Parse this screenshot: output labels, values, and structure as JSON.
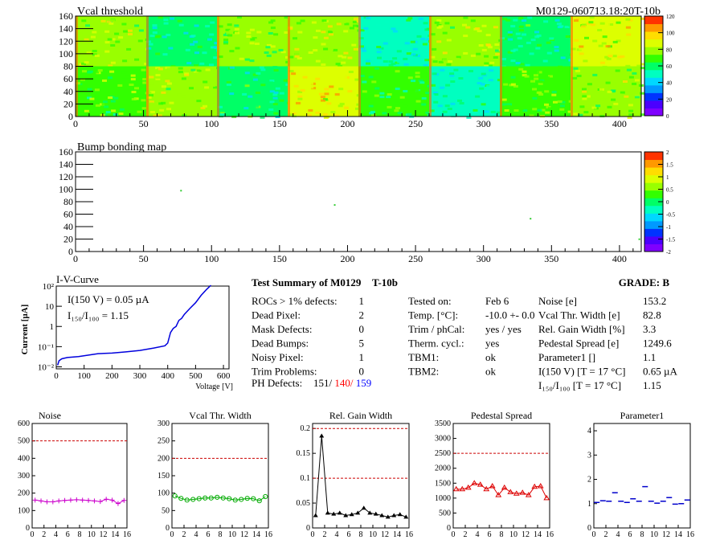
{
  "module_id": "M0129-060713.18:20T-10b",
  "vcal": {
    "title": "Vcal threshold",
    "x_ticks": [
      "0",
      "50",
      "100",
      "150",
      "200",
      "250",
      "300",
      "350",
      "400"
    ],
    "y_ticks": [
      "0",
      "20",
      "40",
      "60",
      "80",
      "100",
      "120",
      "140",
      "160"
    ],
    "palette_ticks": [
      "0",
      "20",
      "40",
      "60",
      "80",
      "100",
      "120"
    ],
    "roc_levels_top": [
      88,
      60,
      82,
      92,
      58,
      90,
      62,
      96
    ],
    "roc_levels_bottom": [
      78,
      90,
      64,
      100,
      72,
      58,
      80,
      86
    ],
    "colors": [
      "#7f00ff",
      "#4b00ff",
      "#0033ff",
      "#0099ff",
      "#00d8ff",
      "#00ffc0",
      "#00ff66",
      "#33ff00",
      "#99ff00",
      "#ddff00",
      "#ffdd00",
      "#ff9900",
      "#ff3300"
    ]
  },
  "bump": {
    "title": "Bump bonding map",
    "x_ticks": [
      "0",
      "50",
      "100",
      "150",
      "200",
      "250",
      "300",
      "350",
      "400"
    ],
    "y_ticks": [
      "0",
      "20",
      "40",
      "60",
      "80",
      "100",
      "120",
      "140",
      "160"
    ],
    "palette_ticks": [
      "2",
      "1.5",
      "1",
      "0.5",
      "0",
      "-0.5",
      "-1",
      "-1.5",
      "-2"
    ],
    "dots": [
      [
        77,
        99
      ],
      [
        190,
        76
      ],
      [
        334,
        54
      ],
      [
        414,
        21
      ]
    ]
  },
  "iv": {
    "title": "I-V-Curve",
    "ylabel": "Current [µA]",
    "xlabel": "Voltage [V]",
    "x_ticks": [
      "0",
      "100",
      "200",
      "300",
      "400",
      "500",
      "600"
    ],
    "y_ticks": [
      "10⁻²",
      "10⁻¹",
      "1",
      "10",
      "10²"
    ],
    "ann1": "I(150 V) = 0.05 µA",
    "ann2": "I₁₅₀/I₁₀₀ =  1.15",
    "points": [
      [
        5,
        0.012
      ],
      [
        10,
        0.02
      ],
      [
        20,
        0.025
      ],
      [
        40,
        0.029
      ],
      [
        80,
        0.032
      ],
      [
        150,
        0.045
      ],
      [
        200,
        0.048
      ],
      [
        250,
        0.055
      ],
      [
        300,
        0.065
      ],
      [
        350,
        0.085
      ],
      [
        390,
        0.11
      ],
      [
        400,
        0.15
      ],
      [
        410,
        0.5
      ],
      [
        420,
        0.8
      ],
      [
        430,
        1.0
      ],
      [
        440,
        2.0
      ],
      [
        450,
        2.5
      ],
      [
        460,
        4.0
      ],
      [
        480,
        8
      ],
      [
        500,
        15
      ],
      [
        520,
        35
      ],
      [
        540,
        70
      ],
      [
        555,
        110
      ]
    ]
  },
  "summary": {
    "title": "Test Summary of M0129",
    "tag": "T-10b",
    "grade": "GRADE:  B",
    "col1": [
      {
        "label": "ROCs > 1% defects:",
        "value": "1"
      },
      {
        "label": "Dead Pixel:",
        "value": "2"
      },
      {
        "label": "Mask Defects:",
        "value": "0"
      },
      {
        "label": "Dead Bumps:",
        "value": "5"
      },
      {
        "label": "Noisy Pixel:",
        "value": "1"
      },
      {
        "label": "Trim Problems:",
        "value": "0"
      }
    ],
    "ph_label": "PH Defects:",
    "ph_vals": [
      "151/ ",
      "140/ ",
      "159"
    ],
    "ph_colors": [
      "#000000",
      "#ff0000",
      "#0000ff"
    ],
    "col2": [
      {
        "label": "Tested on:",
        "value": "Feb 6"
      },
      {
        "label": "Temp. [°C]:",
        "value": "-10.0 +- 0.0"
      },
      {
        "label": "Trim / phCal:",
        "value": "yes / yes"
      },
      {
        "label": "Therm. cycl.:",
        "value": "yes"
      },
      {
        "label": "TBM1:",
        "value": "ok"
      },
      {
        "label": "TBM2:",
        "value": "ok"
      }
    ],
    "col3": [
      {
        "label": "Noise [e]",
        "value": "153.2"
      },
      {
        "label": "Vcal Thr. Width [e]",
        "value": "82.8"
      },
      {
        "label": "Rel. Gain Width [%]",
        "value": "3.3"
      },
      {
        "label": "Pedestal Spread [e]",
        "value": "1249.6"
      },
      {
        "label": "Parameter1 []",
        "value": "1.1"
      },
      {
        "label": "I(150 V) [T = 17 °C]",
        "value": "0.65 µA"
      },
      {
        "label": "I₁₅₀/I₁₀₀  [T = 17 °C]",
        "value": "1.15"
      }
    ]
  },
  "chart_data": [
    {
      "type": "line",
      "title": "Noise",
      "x": [
        0,
        1,
        2,
        3,
        4,
        5,
        6,
        7,
        8,
        9,
        10,
        11,
        12,
        13,
        14,
        15
      ],
      "values": [
        160,
        155,
        150,
        150,
        155,
        158,
        160,
        162,
        160,
        158,
        155,
        152,
        165,
        160,
        140,
        158
      ],
      "ylim": [
        0,
        600
      ],
      "yticks": [
        "0",
        "100",
        "200",
        "300",
        "400",
        "500",
        "600"
      ],
      "threshold": 500,
      "color": "#cc00cc",
      "marker": "plus"
    },
    {
      "type": "line",
      "title": "Vcal Thr. Width",
      "x": [
        0,
        1,
        2,
        3,
        4,
        5,
        6,
        7,
        8,
        9,
        10,
        11,
        12,
        13,
        14,
        15
      ],
      "values": [
        92,
        85,
        80,
        82,
        84,
        86,
        86,
        88,
        86,
        84,
        80,
        82,
        85,
        84,
        78,
        90
      ],
      "ylim": [
        0,
        300
      ],
      "yticks": [
        "0",
        "50",
        "100",
        "150",
        "200",
        "250",
        "300"
      ],
      "threshold": 200,
      "color": "#00aa00",
      "marker": "circle"
    },
    {
      "type": "line",
      "title": "Rel. Gain Width",
      "x": [
        0,
        1,
        2,
        3,
        4,
        5,
        6,
        7,
        8,
        9,
        10,
        11,
        12,
        13,
        14,
        15
      ],
      "values": [
        0.025,
        0.185,
        0.03,
        0.028,
        0.03,
        0.025,
        0.027,
        0.03,
        0.04,
        0.03,
        0.028,
        0.025,
        0.022,
        0.025,
        0.027,
        0.022
      ],
      "ylim": [
        0,
        0.21
      ],
      "yticks": [
        "0",
        "0.05",
        "0.1",
        "0.15",
        "0.2"
      ],
      "tickvals": [
        0,
        0.05,
        0.1,
        0.15,
        0.2
      ],
      "threshold": [
        0.1,
        0.2
      ],
      "color": "#000000",
      "marker": "triangle"
    },
    {
      "type": "line",
      "title": "Pedestal Spread",
      "x": [
        0,
        1,
        2,
        3,
        4,
        5,
        6,
        7,
        8,
        9,
        10,
        11,
        12,
        13,
        14,
        15
      ],
      "values": [
        1300,
        1300,
        1350,
        1500,
        1450,
        1300,
        1400,
        1100,
        1350,
        1200,
        1150,
        1180,
        1100,
        1380,
        1400,
        1000
      ],
      "ylim": [
        0,
        3500
      ],
      "yticks": [
        "0",
        "500",
        "1000",
        "1500",
        "2000",
        "2500",
        "3000",
        "3500"
      ],
      "threshold": 2500,
      "color": "#dd0000",
      "marker": "triangle-open"
    },
    {
      "type": "line",
      "title": "Parameter1",
      "x": [
        0,
        1,
        2,
        3,
        4,
        5,
        6,
        7,
        8,
        9,
        10,
        11,
        12,
        13,
        14,
        15
      ],
      "values": [
        1.05,
        1.12,
        1.1,
        1.45,
        1.1,
        1.05,
        1.2,
        1.1,
        1.7,
        1.1,
        1.02,
        1.1,
        1.25,
        0.98,
        1.0,
        1.15
      ],
      "ylim": [
        0,
        4.3
      ],
      "yticks": [
        "0",
        "1",
        "2",
        "3",
        "4"
      ],
      "tickvals": [
        0,
        1,
        2,
        3,
        4
      ],
      "color": "#0000cc",
      "marker": "hbar"
    }
  ],
  "bottom_x_ticks": [
    "0",
    "2",
    "4",
    "6",
    "8",
    "10",
    "12",
    "14",
    "16"
  ]
}
